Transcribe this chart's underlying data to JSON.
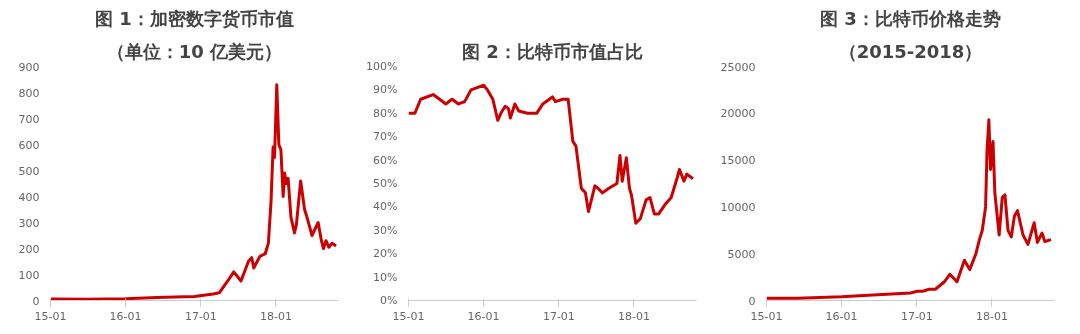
{
  "chart_data": [
    {
      "type": "line",
      "title": "图 1：加密数字货币市值",
      "subtitle": "（单位：10 亿美元）",
      "x": [
        "2015-01-01",
        "2015-07-01",
        "2016-01-01",
        "2016-06-01",
        "2016-12-01",
        "2017-03-01",
        "2017-04-01",
        "2017-05-20",
        "2017-06-10",
        "2017-07-15",
        "2017-08-20",
        "2017-09-05",
        "2017-09-15",
        "2017-10-15",
        "2017-11-10",
        "2017-11-25",
        "2017-12-08",
        "2017-12-18",
        "2017-12-25",
        "2018-01-05",
        "2018-01-15",
        "2018-01-25",
        "2018-02-05",
        "2018-02-12",
        "2018-02-20",
        "2018-03-01",
        "2018-03-15",
        "2018-04-01",
        "2018-04-10",
        "2018-05-01",
        "2018-05-20",
        "2018-06-01",
        "2018-06-25",
        "2018-07-25",
        "2018-08-10",
        "2018-08-20",
        "2018-09-01",
        "2018-09-15",
        "2018-10-01",
        "2018-10-20"
      ],
      "series": [
        {
          "color": "#cc0000",
          "values": [
            6,
            5,
            7,
            12,
            15,
            25,
            30,
            85,
            110,
            75,
            150,
            165,
            125,
            170,
            180,
            220,
            380,
            590,
            550,
            830,
            600,
            580,
            400,
            490,
            450,
            470,
            320,
            260,
            290,
            460,
            350,
            320,
            250,
            300,
            230,
            200,
            230,
            205,
            220,
            210
          ]
        }
      ],
      "xlim": [
        "2015-01-01",
        "2018-11-01"
      ],
      "xticks": [
        {
          "value": "2015-01-01",
          "label": "15-01"
        },
        {
          "value": "2016-01-01",
          "label": "16-01"
        },
        {
          "value": "2017-01-01",
          "label": "17-01"
        },
        {
          "value": "2018-01-01",
          "label": "18-01"
        }
      ],
      "ylim": [
        0,
        900
      ],
      "yticks": [
        0,
        100,
        200,
        300,
        400,
        500,
        600,
        700,
        800,
        900
      ],
      "grid": false,
      "line_style": "solid",
      "marker": "none"
    },
    {
      "type": "line",
      "title": "图 2：比特币市值占比",
      "x": [
        "2015-01-01",
        "2015-02-01",
        "2015-03-01",
        "2015-05-01",
        "2015-06-01",
        "2015-07-01",
        "2015-08-01",
        "2015-09-01",
        "2015-10-01",
        "2015-11-01",
        "2015-12-01",
        "2016-01-01",
        "2016-01-20",
        "2016-02-15",
        "2016-03-10",
        "2016-03-25",
        "2016-04-15",
        "2016-05-01",
        "2016-05-10",
        "2016-06-01",
        "2016-06-20",
        "2016-08-01",
        "2016-09-15",
        "2016-10-15",
        "2016-12-01",
        "2016-12-15",
        "2017-01-20",
        "2017-02-15",
        "2017-03-10",
        "2017-03-25",
        "2017-04-20",
        "2017-05-10",
        "2017-05-25",
        "2017-06-25",
        "2017-07-10",
        "2017-08-01",
        "2017-09-01",
        "2017-10-10",
        "2017-10-25",
        "2017-11-05",
        "2017-11-25",
        "2017-12-10",
        "2017-12-20",
        "2018-01-10",
        "2018-02-01",
        "2018-03-01",
        "2018-03-20",
        "2018-04-10",
        "2018-05-01",
        "2018-06-01",
        "2018-07-01",
        "2018-08-01",
        "2018-08-10",
        "2018-09-01",
        "2018-09-15",
        "2018-10-15"
      ],
      "series": [
        {
          "color": "#cc0000",
          "values": [
            80,
            80,
            86,
            88,
            86,
            84,
            86,
            84,
            85,
            90,
            91,
            92,
            90,
            86,
            77,
            80,
            83,
            82,
            78,
            84,
            81,
            80,
            80,
            84,
            87,
            85,
            86,
            86,
            68,
            66,
            48,
            46,
            38,
            49,
            48,
            46,
            48,
            50,
            62,
            51,
            61,
            48,
            45,
            33,
            35,
            43,
            44,
            37,
            37,
            41,
            44,
            53,
            56,
            51,
            54,
            52
          ]
        }
      ],
      "xlim": [
        "2015-01-01",
        "2018-11-01"
      ],
      "xticks": [
        {
          "value": "2015-01-01",
          "label": "15-01"
        },
        {
          "value": "2016-01-01",
          "label": "16-01"
        },
        {
          "value": "2017-01-01",
          "label": "17-01"
        },
        {
          "value": "2018-01-01",
          "label": "18-01"
        }
      ],
      "ylim": [
        0,
        100
      ],
      "yticks": [
        {
          "value": 0,
          "label": "0%"
        },
        {
          "value": 10,
          "label": "10%"
        },
        {
          "value": 20,
          "label": "20%"
        },
        {
          "value": 30,
          "label": "30%"
        },
        {
          "value": 40,
          "label": "40%"
        },
        {
          "value": 50,
          "label": "50%"
        },
        {
          "value": 60,
          "label": "60%"
        },
        {
          "value": 70,
          "label": "70%"
        },
        {
          "value": 80,
          "label": "80%"
        },
        {
          "value": 90,
          "label": "90%"
        },
        {
          "value": 100,
          "label": "100%"
        }
      ],
      "grid": false,
      "line_style": "solid",
      "marker": "none"
    },
    {
      "type": "line",
      "title": "图 3：比特币价格走势",
      "subtitle": "（2015-2018）",
      "x": [
        "2015-01-01",
        "2015-06-01",
        "2016-01-01",
        "2016-06-01",
        "2016-12-01",
        "2017-01-05",
        "2017-02-01",
        "2017-03-01",
        "2017-04-01",
        "2017-05-15",
        "2017-06-10",
        "2017-07-15",
        "2017-08-20",
        "2017-09-15",
        "2017-10-15",
        "2017-11-01",
        "2017-11-15",
        "2017-12-01",
        "2017-12-08",
        "2017-12-17",
        "2017-12-25",
        "2018-01-06",
        "2018-01-15",
        "2018-02-05",
        "2018-02-20",
        "2018-03-05",
        "2018-03-20",
        "2018-04-05",
        "2018-04-20",
        "2018-05-05",
        "2018-06-01",
        "2018-06-25",
        "2018-07-25",
        "2018-08-10",
        "2018-09-01",
        "2018-09-15",
        "2018-10-15"
      ],
      "series": [
        {
          "color": "#cc0000",
          "values": [
            250,
            230,
            400,
            600,
            800,
            1000,
            1000,
            1200,
            1200,
            2000,
            2800,
            2000,
            4300,
            3300,
            5000,
            6500,
            7500,
            10000,
            16000,
            19300,
            14000,
            17000,
            11500,
            7000,
            11000,
            11300,
            7500,
            6800,
            9000,
            9600,
            7000,
            6000,
            8300,
            6200,
            7200,
            6300,
            6500
          ]
        }
      ],
      "xlim": [
        "2015-01-01",
        "2018-11-01"
      ],
      "xticks": [
        {
          "value": "2015-01-01",
          "label": "15-01"
        },
        {
          "value": "2016-01-01",
          "label": "16-01"
        },
        {
          "value": "2017-01-01",
          "label": "17-01"
        },
        {
          "value": "2018-01-01",
          "label": "18-01"
        }
      ],
      "ylim": [
        0,
        25000
      ],
      "yticks": [
        0,
        5000,
        10000,
        15000,
        20000,
        25000
      ],
      "grid": false,
      "line_style": "solid",
      "marker": "none"
    }
  ]
}
